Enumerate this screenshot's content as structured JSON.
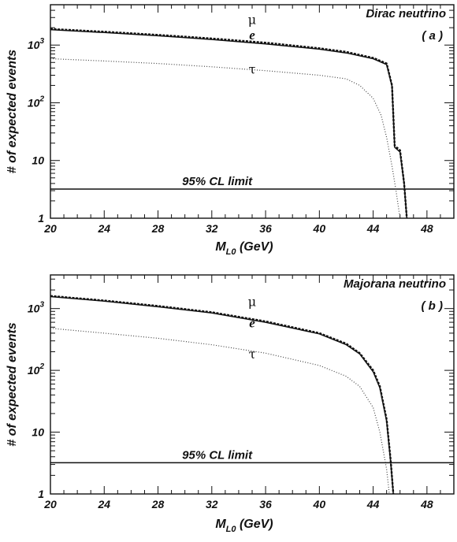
{
  "chart_data": [
    {
      "type": "line",
      "panel_title": "Dirac neutrino",
      "panel_label": "( a )",
      "xlabel_main": "M",
      "xlabel_sub": "L0",
      "xlabel_unit": " (GeV)",
      "ylabel": "# of expected events",
      "xlim": [
        20,
        50
      ],
      "ylim": [
        1,
        5000
      ],
      "yscale": "log",
      "x_ticks": [
        20,
        24,
        28,
        32,
        36,
        40,
        44,
        48
      ],
      "x_tick_labels": [
        "20",
        "24",
        "28",
        "32",
        "36",
        "40",
        "44",
        "48"
      ],
      "y_ticks": [
        1,
        10,
        100,
        1000
      ],
      "y_tick_labels": [
        {
          "base": "1",
          "exp": ""
        },
        {
          "base": "10",
          "exp": ""
        },
        {
          "base": "10",
          "exp": "2"
        },
        {
          "base": "10",
          "exp": "3"
        }
      ],
      "limit": {
        "y": 3.2,
        "label": "95% CL limit"
      },
      "series": [
        {
          "name": "μ",
          "style": "dashed",
          "x": [
            20,
            24,
            28,
            32,
            36,
            40,
            42,
            44,
            45,
            45.4,
            45.6,
            46.0,
            46.3,
            46.5
          ],
          "y": [
            1900,
            1700,
            1500,
            1300,
            1100,
            880,
            760,
            600,
            480,
            200,
            18,
            15,
            4,
            1
          ]
        },
        {
          "name": "e",
          "style": "solid",
          "x": [
            20,
            24,
            28,
            32,
            36,
            40,
            42,
            44,
            45,
            45.4,
            45.6,
            46.0,
            46.3,
            46.5
          ],
          "y": [
            1850,
            1650,
            1450,
            1250,
            1050,
            850,
            730,
            580,
            460,
            195,
            17,
            14,
            4,
            1
          ]
        },
        {
          "name": "τ",
          "style": "dotted",
          "x": [
            20,
            24,
            28,
            32,
            36,
            40,
            42,
            43,
            44,
            44.6,
            45.0,
            45.4,
            45.7,
            46.0
          ],
          "y": [
            580,
            530,
            480,
            420,
            360,
            300,
            260,
            200,
            120,
            60,
            25,
            8,
            3,
            1
          ]
        }
      ],
      "curve_labels": [
        {
          "text": "μ",
          "x": 35.0,
          "y": 2300,
          "kind": "greek"
        },
        {
          "text": "e",
          "x": 35.0,
          "y": 1250,
          "kind": "roman"
        },
        {
          "text": "τ",
          "x": 35.0,
          "y": 320,
          "kind": "greek"
        }
      ]
    },
    {
      "type": "line",
      "panel_title": "Majorana neutrino",
      "panel_label": "( b )",
      "xlabel_main": "M",
      "xlabel_sub": "L0",
      "xlabel_unit": " (GeV)",
      "ylabel": "# of expected events",
      "xlim": [
        20,
        50
      ],
      "ylim": [
        1,
        3500
      ],
      "yscale": "log",
      "x_ticks": [
        20,
        24,
        28,
        32,
        36,
        40,
        44,
        48
      ],
      "x_tick_labels": [
        "20",
        "24",
        "28",
        "32",
        "36",
        "40",
        "44",
        "48"
      ],
      "y_ticks": [
        1,
        10,
        100,
        1000
      ],
      "y_tick_labels": [
        {
          "base": "1",
          "exp": ""
        },
        {
          "base": "10",
          "exp": ""
        },
        {
          "base": "10",
          "exp": "2"
        },
        {
          "base": "10",
          "exp": "3"
        }
      ],
      "limit": {
        "y": 3.2,
        "label": "95% CL limit"
      },
      "series": [
        {
          "name": "μ",
          "style": "dashed",
          "x": [
            20,
            24,
            28,
            32,
            36,
            40,
            42,
            43,
            44,
            44.5,
            45.0,
            45.3,
            45.5
          ],
          "y": [
            1600,
            1350,
            1100,
            870,
            620,
            400,
            270,
            190,
            100,
            55,
            16,
            3.5,
            1
          ]
        },
        {
          "name": "e",
          "style": "solid",
          "x": [
            20,
            24,
            28,
            32,
            36,
            40,
            42,
            43,
            44,
            44.5,
            45.0,
            45.3,
            45.5
          ],
          "y": [
            1560,
            1320,
            1070,
            850,
            600,
            390,
            260,
            185,
            95,
            52,
            15,
            3.3,
            1
          ]
        },
        {
          "name": "τ",
          "style": "dotted",
          "x": [
            20,
            24,
            28,
            32,
            36,
            40,
            42,
            43,
            44,
            44.5,
            45.0,
            45.2
          ],
          "y": [
            480,
            400,
            330,
            260,
            190,
            120,
            80,
            55,
            25,
            10,
            2.5,
            1
          ]
        }
      ],
      "curve_labels": [
        {
          "text": "μ",
          "x": 35.0,
          "y": 1100,
          "kind": "greek"
        },
        {
          "text": "e",
          "x": 35.0,
          "y": 500,
          "kind": "roman"
        },
        {
          "text": "τ",
          "x": 35.0,
          "y": 155,
          "kind": "greek"
        }
      ]
    }
  ]
}
